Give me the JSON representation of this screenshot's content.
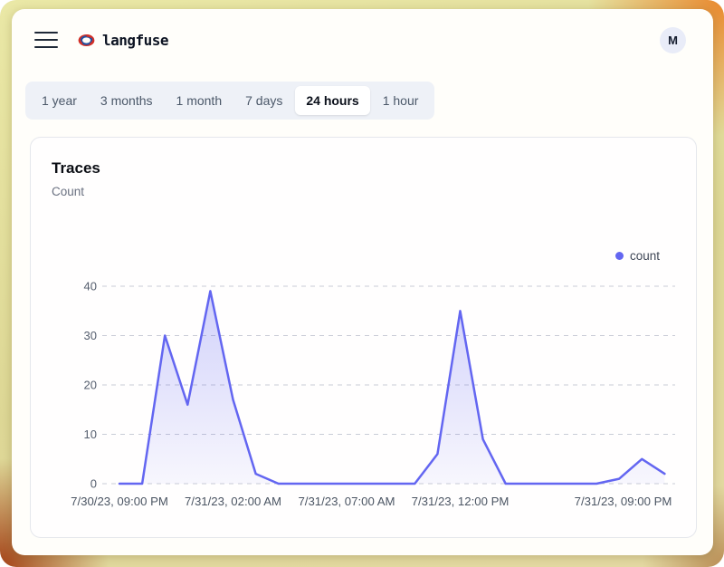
{
  "header": {
    "app_name": "langfuse",
    "avatar_initial": "M"
  },
  "time_range_tabs": {
    "items": [
      "1 year",
      "3 months",
      "1 month",
      "7 days",
      "24 hours",
      "1 hour"
    ],
    "selected": "24 hours"
  },
  "card": {
    "title": "Traces",
    "subtitle": "Count"
  },
  "legend": {
    "label": "count",
    "color": "#6366f1"
  },
  "chart_data": {
    "type": "area",
    "title": "Traces",
    "subtitle": "Count",
    "x_interval": "1 hour",
    "x_start": "7/30/23, 09:00 PM",
    "x_end": "7/31/23, 09:00 PM",
    "series": [
      {
        "name": "count",
        "color": "#6366f1",
        "values": [
          0,
          0,
          30,
          16,
          39,
          17,
          2,
          0,
          0,
          0,
          0,
          0,
          0,
          0,
          6,
          35,
          9,
          0,
          0,
          0,
          0,
          0,
          1,
          5,
          2
        ]
      }
    ],
    "x_tick_labels": [
      "7/30/23, 09:00 PM",
      "7/31/23, 02:00 AM",
      "7/31/23, 07:00 AM",
      "7/31/23, 12:00 PM",
      "7/31/23, 09:00 PM"
    ],
    "x_tick_indices": [
      0,
      5,
      10,
      15,
      24
    ],
    "y_ticks": [
      0,
      10,
      20,
      30,
      40
    ],
    "ylim": [
      0,
      40
    ],
    "grid": "dashed-horizontal",
    "legend_position": "top-right",
    "colors": {
      "gridline": "#c9ccd6",
      "tick_text": "#555e6e"
    }
  }
}
